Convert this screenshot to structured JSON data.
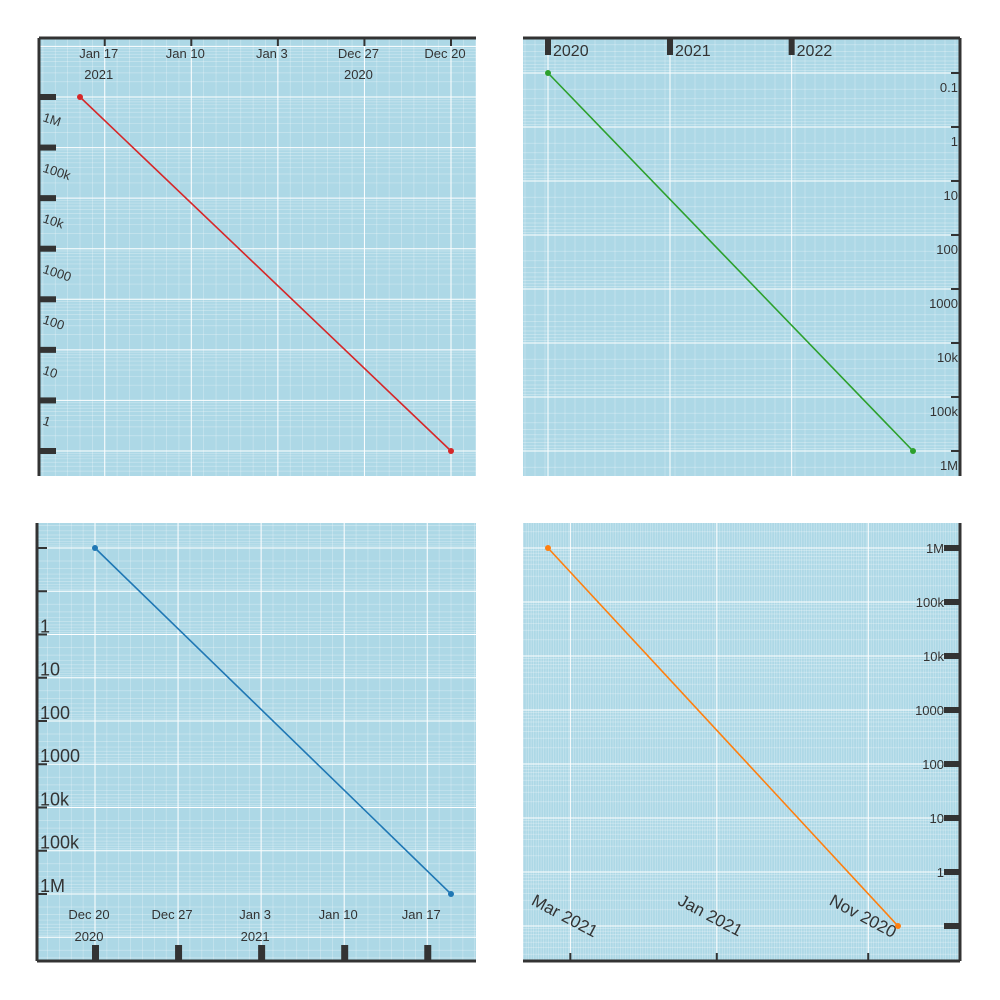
{
  "chart_data": [
    {
      "type": "line",
      "title": "",
      "xlabel": "",
      "ylabel": "",
      "x_scale": "time",
      "y_scale": "log",
      "x_ticks": [
        {
          "date": "2021-01-17",
          "label": "Jan 17",
          "sub": "2021"
        },
        {
          "date": "2021-01-10",
          "label": "Jan 10",
          "sub": ""
        },
        {
          "date": "2021-01-03",
          "label": "Jan 3",
          "sub": ""
        },
        {
          "date": "2020-12-27",
          "label": "Dec 27",
          "sub": "2020"
        },
        {
          "date": "2020-12-20",
          "label": "Dec 20",
          "sub": ""
        }
      ],
      "y_ticks": [
        "1M",
        "100k",
        "10k",
        "1000",
        "100",
        "10",
        "1"
      ],
      "series": [
        {
          "color": "#d62728",
          "x": [
            "2021-01-19",
            "2020-12-20"
          ],
          "y": [
            1000000,
            0.1
          ]
        }
      ]
    },
    {
      "type": "line",
      "title": "",
      "xlabel": "",
      "ylabel": "",
      "x_scale": "time",
      "y_scale": "log",
      "x_ticks": [
        {
          "date": "2020-01-01",
          "label": "2020"
        },
        {
          "date": "2021-01-01",
          "label": "2021"
        },
        {
          "date": "2022-01-01",
          "label": "2022"
        }
      ],
      "y_ticks": [
        "0.1",
        "1",
        "10",
        "100",
        "1000",
        "10k",
        "100k",
        "1M"
      ],
      "series": [
        {
          "color": "#2ca02c",
          "x": [
            "2020-01-01",
            "2022-12-31"
          ],
          "y": [
            0.1,
            1000000
          ]
        }
      ]
    },
    {
      "type": "line",
      "title": "",
      "xlabel": "",
      "ylabel": "",
      "x_scale": "time",
      "y_scale": "log",
      "x_ticks": [
        {
          "date": "2020-12-20",
          "label": "Dec 20",
          "sub": "2020"
        },
        {
          "date": "2020-12-27",
          "label": "Dec 27",
          "sub": ""
        },
        {
          "date": "2021-01-03",
          "label": "Jan 3",
          "sub": "2021"
        },
        {
          "date": "2021-01-10",
          "label": "Jan 10",
          "sub": ""
        },
        {
          "date": "2021-01-17",
          "label": "Jan 17",
          "sub": ""
        }
      ],
      "y_ticks": [
        "1",
        "10",
        "100",
        "1000",
        "10k",
        "100k",
        "1M"
      ],
      "series": [
        {
          "color": "#1f77b4",
          "x": [
            "2020-12-20",
            "2021-01-19"
          ],
          "y": [
            0.1,
            10000000
          ]
        }
      ]
    },
    {
      "type": "line",
      "title": "",
      "xlabel": "",
      "ylabel": "",
      "x_scale": "time",
      "y_scale": "log",
      "x_ticks": [
        {
          "date": "2021-03-01",
          "label": "Mar 2021"
        },
        {
          "date": "2021-01-01",
          "label": "Jan 2021"
        },
        {
          "date": "2020-11-01",
          "label": "Nov 2020"
        }
      ],
      "y_ticks": [
        "1M",
        "100k",
        "10k",
        "1000",
        "100",
        "10",
        "1"
      ],
      "series": [
        {
          "color": "#ff7f0e",
          "x": [
            "2021-03-10",
            "2020-10-20"
          ],
          "y": [
            1000000,
            0.1
          ]
        }
      ]
    }
  ]
}
